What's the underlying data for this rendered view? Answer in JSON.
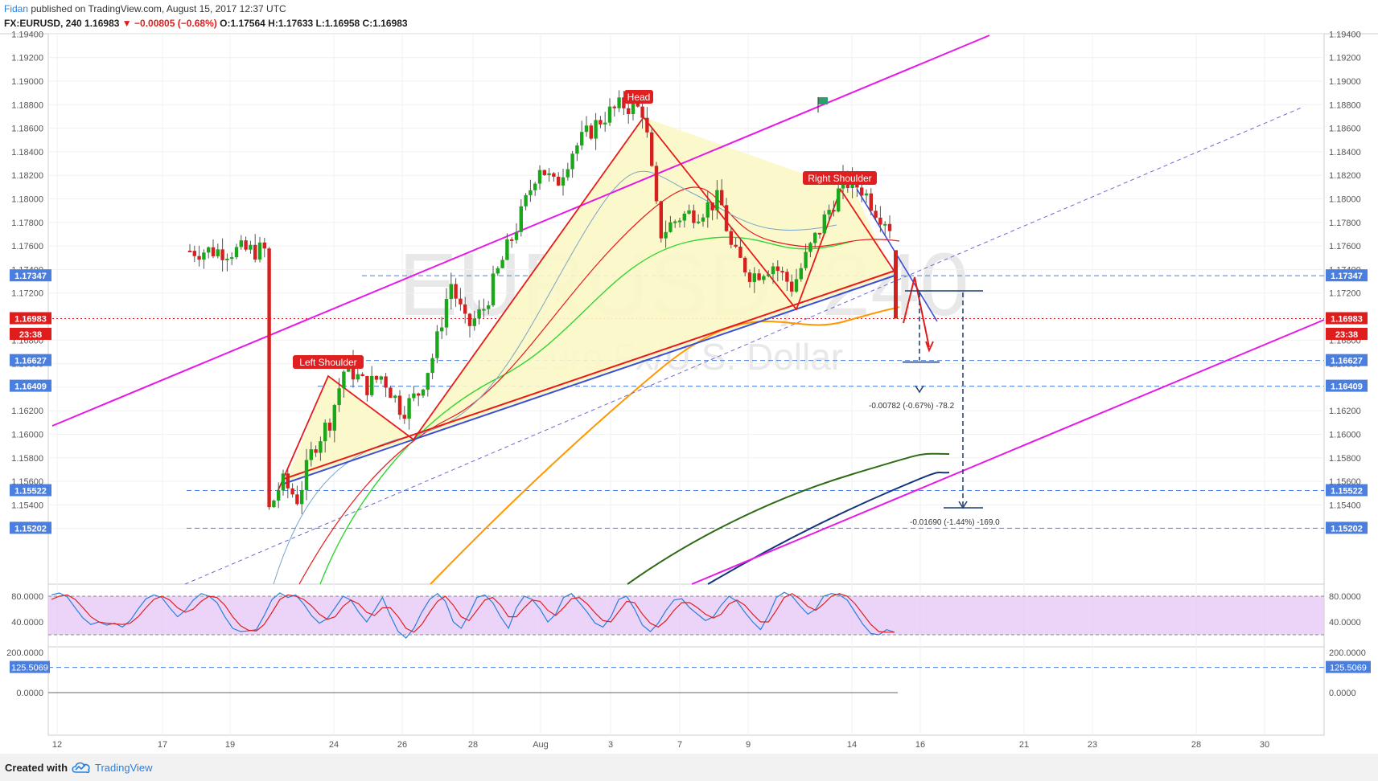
{
  "header": {
    "author": "Fidan",
    "published_text": " published on TradingView.com, August 15, 2017 12:37 UTC",
    "symbol": "FX:EURUSD, 240",
    "last": "1.16983",
    "change": "−0.00805 (−0.68%)",
    "ohlc": "O:1.17564 H:1.17633 L:1.16958 C:1.16983"
  },
  "watermark": {
    "symbol": "EURUSD, 240",
    "description": "Euro Fx/U.S. Dollar"
  },
  "footer": {
    "created_with": "Created with",
    "brand": "TradingView"
  },
  "colors": {
    "bull": "#1aa71a",
    "bear": "#d61f1f",
    "channel": "#e619e6",
    "pattern_fill": "#fbf7c6",
    "neckline_red": "#e81a1a",
    "neckline_blue": "#3b4fd6",
    "ma_orange": "#ff9800",
    "ma_green_dark": "#2e6b14",
    "ma_navy": "#12367a",
    "ma_lime": "#32d632",
    "stoch_bg": "#e6c9f5"
  },
  "chart_data": {
    "type": "candlestick",
    "x_ticks": [
      "12",
      "17",
      "19",
      "24",
      "26",
      "28",
      "Aug",
      "3",
      "7",
      "9",
      "14",
      "16",
      "21",
      "23",
      "28",
      "30"
    ],
    "y_ticks": [
      "1.19400",
      "1.19200",
      "1.19000",
      "1.18800",
      "1.18600",
      "1.18400",
      "1.18200",
      "1.18000",
      "1.17800",
      "1.17600",
      "1.17400",
      "1.17200",
      "1.17000",
      "1.16800",
      "1.16600",
      "1.16400",
      "1.16200",
      "1.16000",
      "1.15800",
      "1.15600",
      "1.15400",
      "1.15200"
    ],
    "ylim": [
      1.1515,
      1.1945
    ],
    "price_labels": [
      {
        "value": "1.17347",
        "price": 1.17347,
        "color": "#4a7fe0"
      },
      {
        "value": "1.16983",
        "price": 1.16983,
        "color": "#e01d1d"
      },
      {
        "value": "23:38",
        "price": 1.1685,
        "color": "#e01d1d"
      },
      {
        "value": "1.16627",
        "price": 1.16627,
        "color": "#4a7fe0"
      },
      {
        "value": "1.16409",
        "price": 1.16409,
        "color": "#4a7fe0"
      },
      {
        "value": "1.15522",
        "price": 1.15522,
        "color": "#4a7fe0"
      },
      {
        "value": "1.15202",
        "price": 1.15202,
        "color": "#4a7fe0"
      }
    ],
    "pattern_labels": [
      "Left Shoulder",
      "Head",
      "Right Shoulder"
    ],
    "measurements": [
      "-0.00782 (-0.67%) -78.2",
      "-0.01690 (-1.44%) -169.0"
    ],
    "stochastic": {
      "y_ticks": [
        "80.0000",
        "40.0000"
      ],
      "levels": [
        80,
        20
      ],
      "k": [
        82,
        85,
        79,
        62,
        46,
        36,
        40,
        35,
        38,
        32,
        42,
        60,
        76,
        82,
        78,
        62,
        48,
        58,
        74,
        84,
        80,
        70,
        48,
        30,
        25,
        26,
        28,
        50,
        75,
        85,
        78,
        82,
        68,
        50,
        38,
        45,
        62,
        80,
        74,
        55,
        40,
        58,
        78,
        50,
        25,
        15,
        30,
        55,
        75,
        84,
        72,
        40,
        30,
        52,
        78,
        82,
        70,
        48,
        30,
        62,
        80,
        75,
        60,
        40,
        52,
        78,
        84,
        70,
        55,
        38,
        32,
        48,
        75,
        80,
        60,
        35,
        25,
        38,
        58,
        74,
        76,
        62,
        52,
        42,
        48,
        66,
        80,
        72,
        55,
        40,
        28,
        50,
        78,
        86,
        80,
        65,
        52,
        60,
        80,
        84,
        82,
        74,
        55,
        36,
        22,
        20,
        28,
        24
      ],
      "d": [
        75,
        80,
        82,
        75,
        62,
        48,
        40,
        38,
        37,
        36,
        38,
        48,
        62,
        75,
        80,
        74,
        62,
        55,
        60,
        72,
        80,
        78,
        66,
        48,
        34,
        27,
        26,
        36,
        55,
        75,
        82,
        80,
        75,
        65,
        52,
        44,
        48,
        64,
        74,
        68,
        55,
        50,
        62,
        62,
        48,
        30,
        24,
        36,
        55,
        72,
        80,
        66,
        48,
        42,
        58,
        74,
        78,
        66,
        48,
        48,
        62,
        74,
        72,
        58,
        50,
        62,
        76,
        78,
        68,
        54,
        42,
        40,
        56,
        72,
        70,
        52,
        38,
        32,
        42,
        58,
        70,
        70,
        62,
        52,
        46,
        52,
        68,
        74,
        66,
        52,
        40,
        40,
        58,
        78,
        84,
        76,
        64,
        58,
        68,
        80,
        84,
        80,
        68,
        52,
        36,
        25,
        24,
        24
      ]
    },
    "lower_indicator": {
      "y_ticks": [
        "200.0000",
        "125.5069",
        "0.0000"
      ],
      "current": "125.5069"
    }
  }
}
